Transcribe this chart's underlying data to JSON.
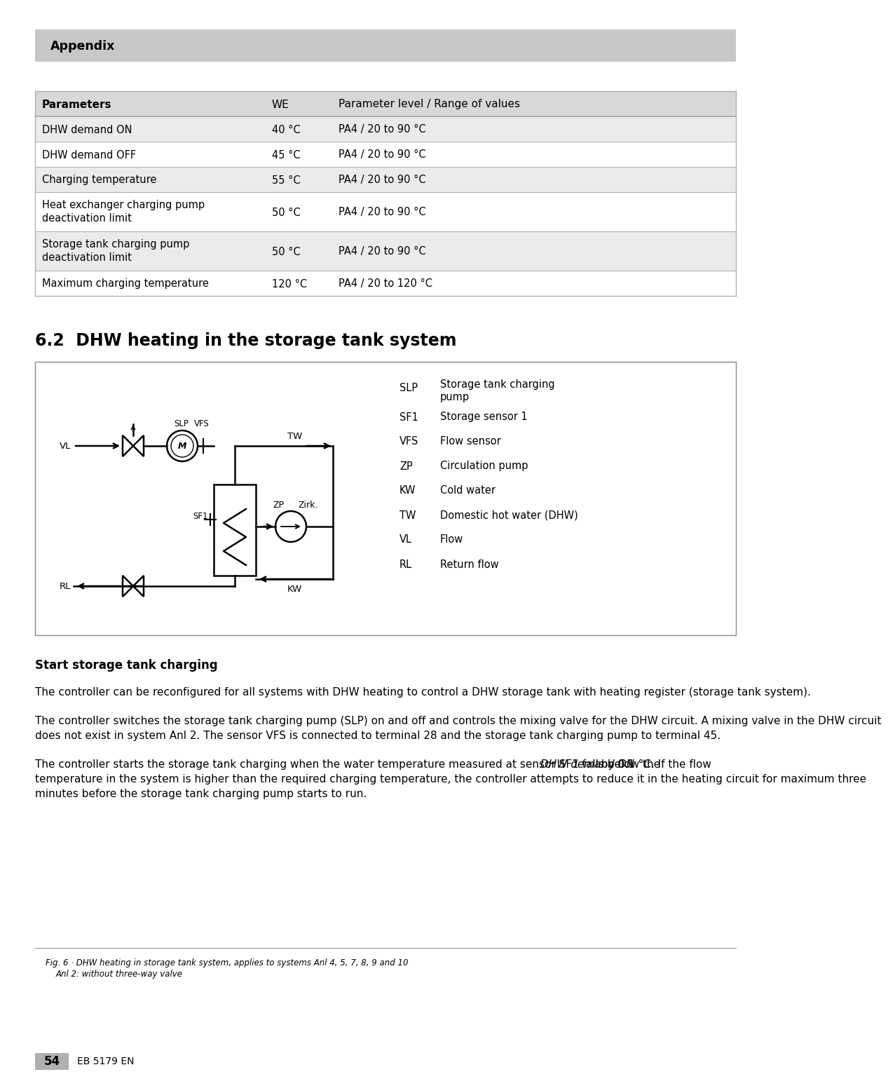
{
  "page_bg": "#ffffff",
  "header_bg": "#c8c8c8",
  "header_text": "Appendix",
  "header_text_color": "#000000",
  "table_header_bg": "#d8d8d8",
  "table_row_bg_odd": "#ebebeb",
  "table_row_bg_even": "#ffffff",
  "table_border_color": "#aaaaaa",
  "table_columns": [
    "Parameters",
    "WE",
    "Parameter level / Range of values"
  ],
  "table_rows": [
    [
      "DHW demand ON",
      "40 °C",
      "PA4 / 20 to 90 °C"
    ],
    [
      "DHW demand OFF",
      "45 °C",
      "PA4 / 20 to 90 °C"
    ],
    [
      "Charging temperature",
      "55 °C",
      "PA4 / 20 to 90 °C"
    ],
    [
      "Heat exchanger charging pump\ndeactivation limit",
      "50 °C",
      "PA4 / 20 to 90 °C"
    ],
    [
      "Storage tank charging pump\ndeactivation limit",
      "50 °C",
      "PA4 / 20 to 90 °C"
    ],
    [
      "Maximum charging temperature",
      "120 °C",
      "PA4 / 20 to 120 °C"
    ]
  ],
  "section_title": "6.2  DHW heating in the storage tank system",
  "diagram_border_color": "#888888",
  "legend_items": [
    [
      "SLP",
      "Storage tank charging\npump"
    ],
    [
      "SF1",
      "Storage sensor 1"
    ],
    [
      "VFS",
      "Flow sensor"
    ],
    [
      "ZP",
      "Circulation pump"
    ],
    [
      "KW",
      "Cold water"
    ],
    [
      "TW",
      "Domestic hot water (DHW)"
    ],
    [
      "VL",
      "Flow"
    ],
    [
      "RL",
      "Return flow"
    ]
  ],
  "fig_caption_line1": "Fig. 6 · DHW heating in storage tank system, applies to systems Anl 4, 5, 7, 8, 9 and 10",
  "fig_caption_line2": "Anl 2: without three-way valve",
  "subsection_title": "Start storage tank charging",
  "para1": "The controller can be reconfigured for all systems with DHW heating to control a DHW storage tank with heating register (storage tank system).",
  "para2": "The controller switches the storage tank charging pump (SLP) on and off and controls the mixing valve for the DHW circuit. A mixing valve in the DHW circuit does not exist in system Anl 2. The sensor VFS is connected to terminal 28 and the storage tank charging pump to terminal 45.",
  "para3a": "The controller starts the storage tank charging when the water temperature measured at sensor SF1 falls below the ",
  "para3_italic": "DHW demand ON",
  "para3b": " by 0.1 °C. If the flow temperature in the system is higher than the required charging temperature, the controller attempts to reduce it in the heating circuit for maximum three minutes before the storage tank charging pump starts to run.",
  "footer_number": "54",
  "footer_text": "EB 5179 EN",
  "footer_bg": "#b0b0b0"
}
